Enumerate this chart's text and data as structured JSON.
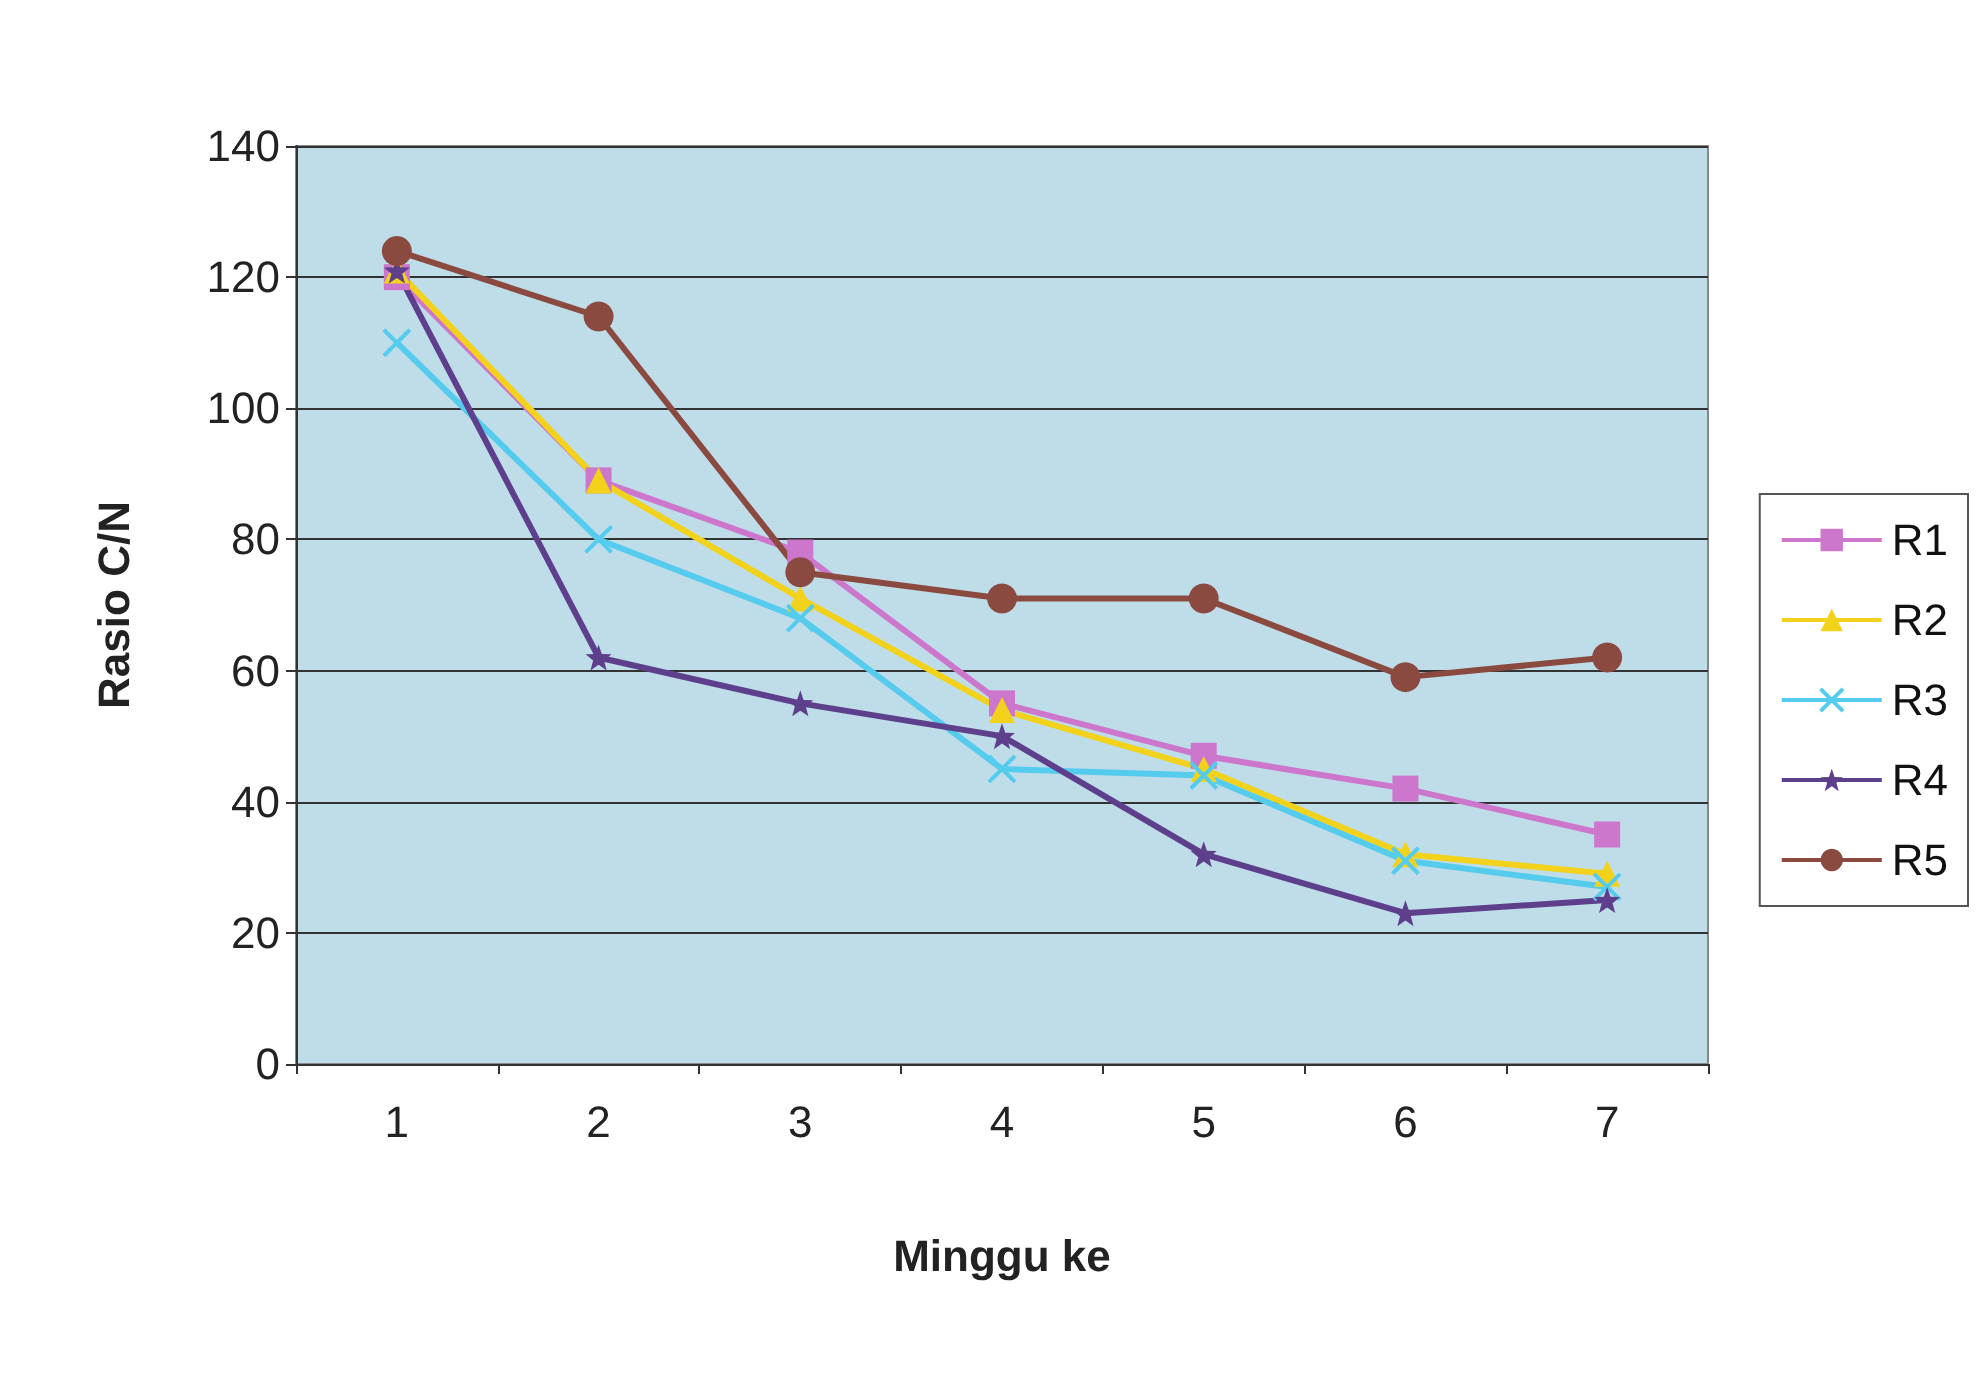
{
  "chart_data": {
    "type": "line",
    "xlabel": "Minggu ke",
    "ylabel": "Rasio C/N",
    "categories": [
      "1",
      "2",
      "3",
      "4",
      "5",
      "6",
      "7"
    ],
    "ylim": [
      0,
      140
    ],
    "yticks": [
      0,
      20,
      40,
      60,
      80,
      100,
      120,
      140
    ],
    "grid": "y",
    "legend": "right",
    "series": [
      {
        "name": "R1",
        "color": "#cc77cc",
        "marker": "square",
        "values": [
          120,
          89,
          78,
          55,
          47,
          42,
          35
        ]
      },
      {
        "name": "R2",
        "color": "#f2d21a",
        "marker": "triangle",
        "values": [
          121,
          89,
          71,
          54,
          45,
          32,
          29
        ]
      },
      {
        "name": "R3",
        "color": "#55ccee",
        "marker": "cross",
        "values": [
          110,
          80,
          68,
          45,
          44,
          31,
          27
        ]
      },
      {
        "name": "R4",
        "color": "#5e3f8c",
        "marker": "star",
        "values": [
          121,
          62,
          55,
          50,
          32,
          23,
          25
        ]
      },
      {
        "name": "R5",
        "color": "#8a4a40",
        "marker": "circle",
        "values": [
          124,
          114,
          75,
          71,
          71,
          59,
          62
        ]
      }
    ]
  }
}
